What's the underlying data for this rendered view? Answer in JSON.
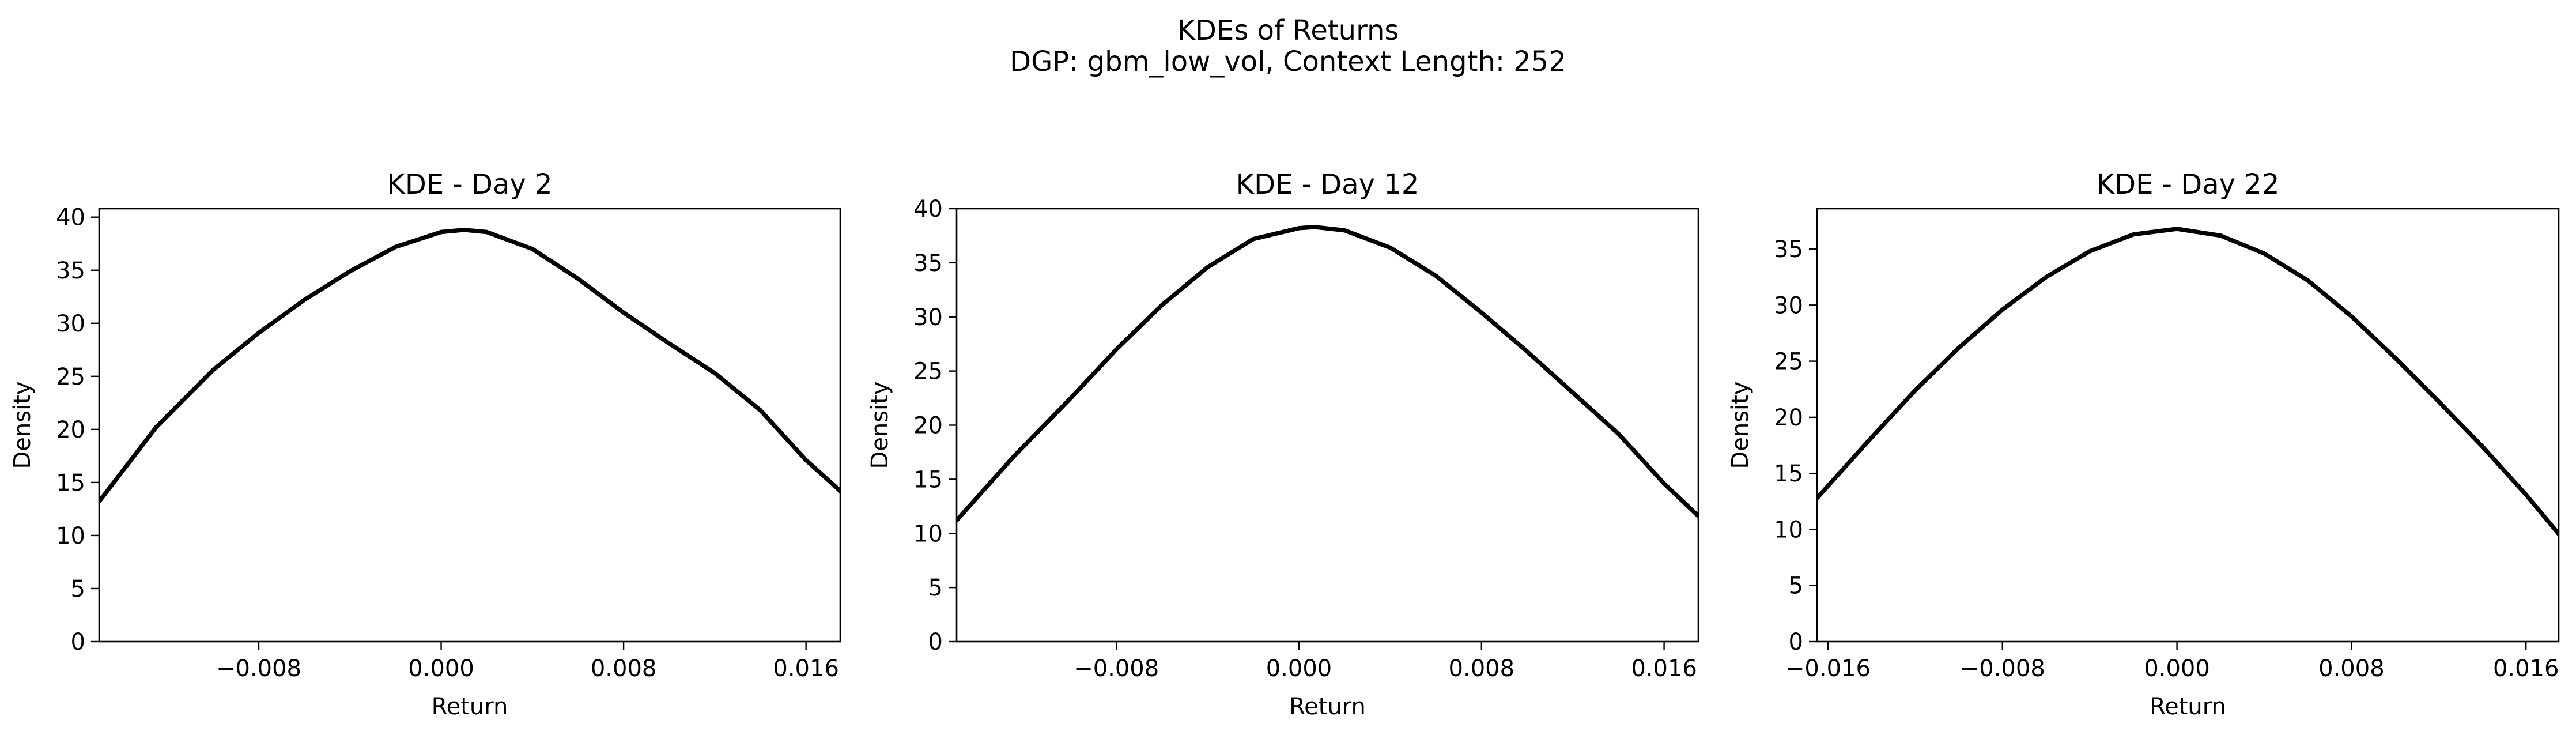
{
  "figure": {
    "title_line1": "KDEs of Returns",
    "title_line2": "DGP: gbm_low_vol, Context Length: 252"
  },
  "chart_data": [
    {
      "type": "line",
      "title": "KDE - Day 2",
      "xlabel": "Return",
      "ylabel": "Density",
      "xlim": [
        -0.015,
        0.0175
      ],
      "ylim": [
        0,
        40.8
      ],
      "xticks": [
        -0.008,
        0.0,
        0.008,
        0.016
      ],
      "xtick_labels": [
        "−0.008",
        "0.000",
        "0.008",
        "0.016"
      ],
      "yticks": [
        0,
        5,
        10,
        15,
        20,
        25,
        30,
        35,
        40
      ],
      "grid": false,
      "series": [
        {
          "color": "#000000",
          "x": [
            -0.015,
            -0.0125,
            -0.01,
            -0.008,
            -0.006,
            -0.004,
            -0.002,
            0.0,
            0.001,
            0.002,
            0.004,
            0.006,
            0.008,
            0.01,
            0.012,
            0.014,
            0.016,
            0.0175
          ],
          "y": [
            13.2,
            20.2,
            25.6,
            29.1,
            32.2,
            34.9,
            37.2,
            38.6,
            38.8,
            38.6,
            37.0,
            34.2,
            31.0,
            28.1,
            25.3,
            21.8,
            17.1,
            14.2
          ]
        }
      ]
    },
    {
      "type": "line",
      "title": "KDE - Day 12",
      "xlabel": "Return",
      "ylabel": "Density",
      "xlim": [
        -0.015,
        0.0175
      ],
      "ylim": [
        0,
        40
      ],
      "xticks": [
        -0.008,
        0.0,
        0.008,
        0.016
      ],
      "xtick_labels": [
        "−0.008",
        "0.000",
        "0.008",
        "0.016"
      ],
      "yticks": [
        0,
        5,
        10,
        15,
        20,
        25,
        30,
        35,
        40
      ],
      "grid": false,
      "series": [
        {
          "color": "#000000",
          "x": [
            -0.015,
            -0.0125,
            -0.01,
            -0.008,
            -0.006,
            -0.004,
            -0.002,
            0.0,
            0.0007,
            0.002,
            0.004,
            0.006,
            0.008,
            0.01,
            0.012,
            0.014,
            0.016,
            0.0175
          ],
          "y": [
            11.2,
            17.1,
            22.5,
            27.0,
            31.1,
            34.6,
            37.2,
            38.2,
            38.3,
            38.0,
            36.4,
            33.8,
            30.4,
            26.8,
            23.0,
            19.2,
            14.6,
            11.6
          ]
        }
      ]
    },
    {
      "type": "line",
      "title": "KDE - Day 22",
      "xlabel": "Return",
      "ylabel": "Density",
      "xlim": [
        -0.0165,
        0.0175
      ],
      "ylim": [
        0,
        38.6
      ],
      "xticks": [
        -0.016,
        -0.008,
        0.0,
        0.008,
        0.016
      ],
      "xtick_labels": [
        "−0.016",
        "−0.008",
        "0.000",
        "0.008",
        "0.016"
      ],
      "yticks": [
        0,
        5,
        10,
        15,
        20,
        25,
        30,
        35
      ],
      "grid": false,
      "series": [
        {
          "color": "#000000",
          "x": [
            -0.0165,
            -0.014,
            -0.012,
            -0.01,
            -0.008,
            -0.006,
            -0.004,
            -0.002,
            0.0,
            0.002,
            0.004,
            0.006,
            0.008,
            0.01,
            0.012,
            0.014,
            0.016,
            0.0175
          ],
          "y": [
            12.8,
            18.2,
            22.4,
            26.2,
            29.6,
            32.5,
            34.8,
            36.3,
            36.8,
            36.2,
            34.6,
            32.2,
            29.0,
            25.3,
            21.4,
            17.4,
            13.1,
            9.6
          ]
        }
      ]
    }
  ]
}
